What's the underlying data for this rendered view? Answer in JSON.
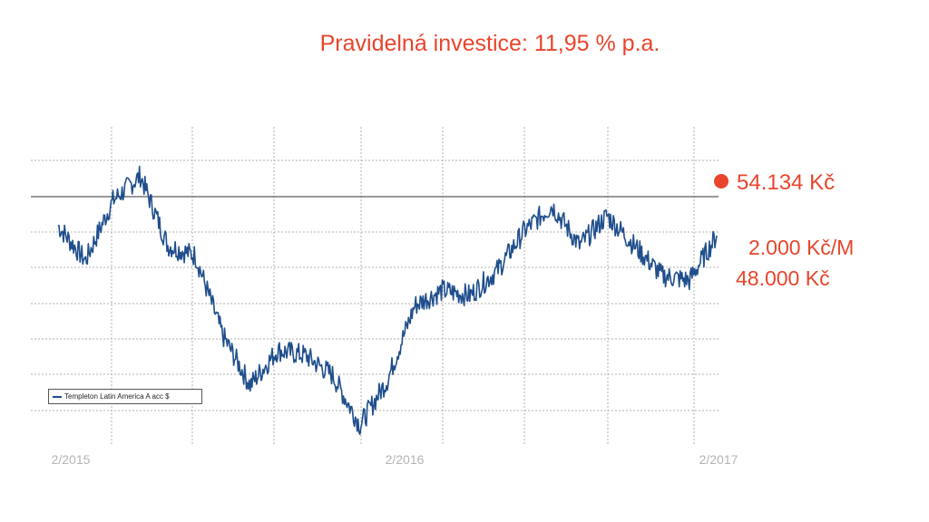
{
  "title": "Pravidelná investice: 11,95 % p.a.",
  "annotations": {
    "current_value": "54.134 Kč",
    "monthly": "2.000 Kč/M",
    "invested": "48.000 Kč"
  },
  "colors": {
    "accent": "#e8452c",
    "series": "#1f4e8c",
    "grid": "#b0b0b0"
  },
  "chart_data": {
    "type": "line",
    "x_tick_labels": [
      "2/2015",
      "2/2016",
      "2/2017"
    ],
    "x_ticks": [
      "2015-02",
      "2016-02",
      "2017-02"
    ],
    "grid": true,
    "legend_position": "bottom-left",
    "series": [
      {
        "name": "Templeton Latin America A acc $",
        "x": [
          "2015-02",
          "2015-03",
          "2015-04",
          "2015-05",
          "2015-06",
          "2015-07",
          "2015-08",
          "2015-09",
          "2015-10",
          "2015-11",
          "2015-12",
          "2016-01",
          "2016-02",
          "2016-03",
          "2016-04",
          "2016-05",
          "2016-06",
          "2016-07",
          "2016-08",
          "2016-09",
          "2016-10",
          "2016-11",
          "2016-12",
          "2017-01",
          "2017-02"
        ],
        "y": [
          42,
          35,
          47,
          52,
          38,
          36,
          20,
          10,
          17,
          16,
          12,
          2,
          11,
          26,
          29,
          28,
          33,
          41,
          46,
          38,
          44,
          38,
          32,
          31,
          40
        ]
      }
    ]
  }
}
